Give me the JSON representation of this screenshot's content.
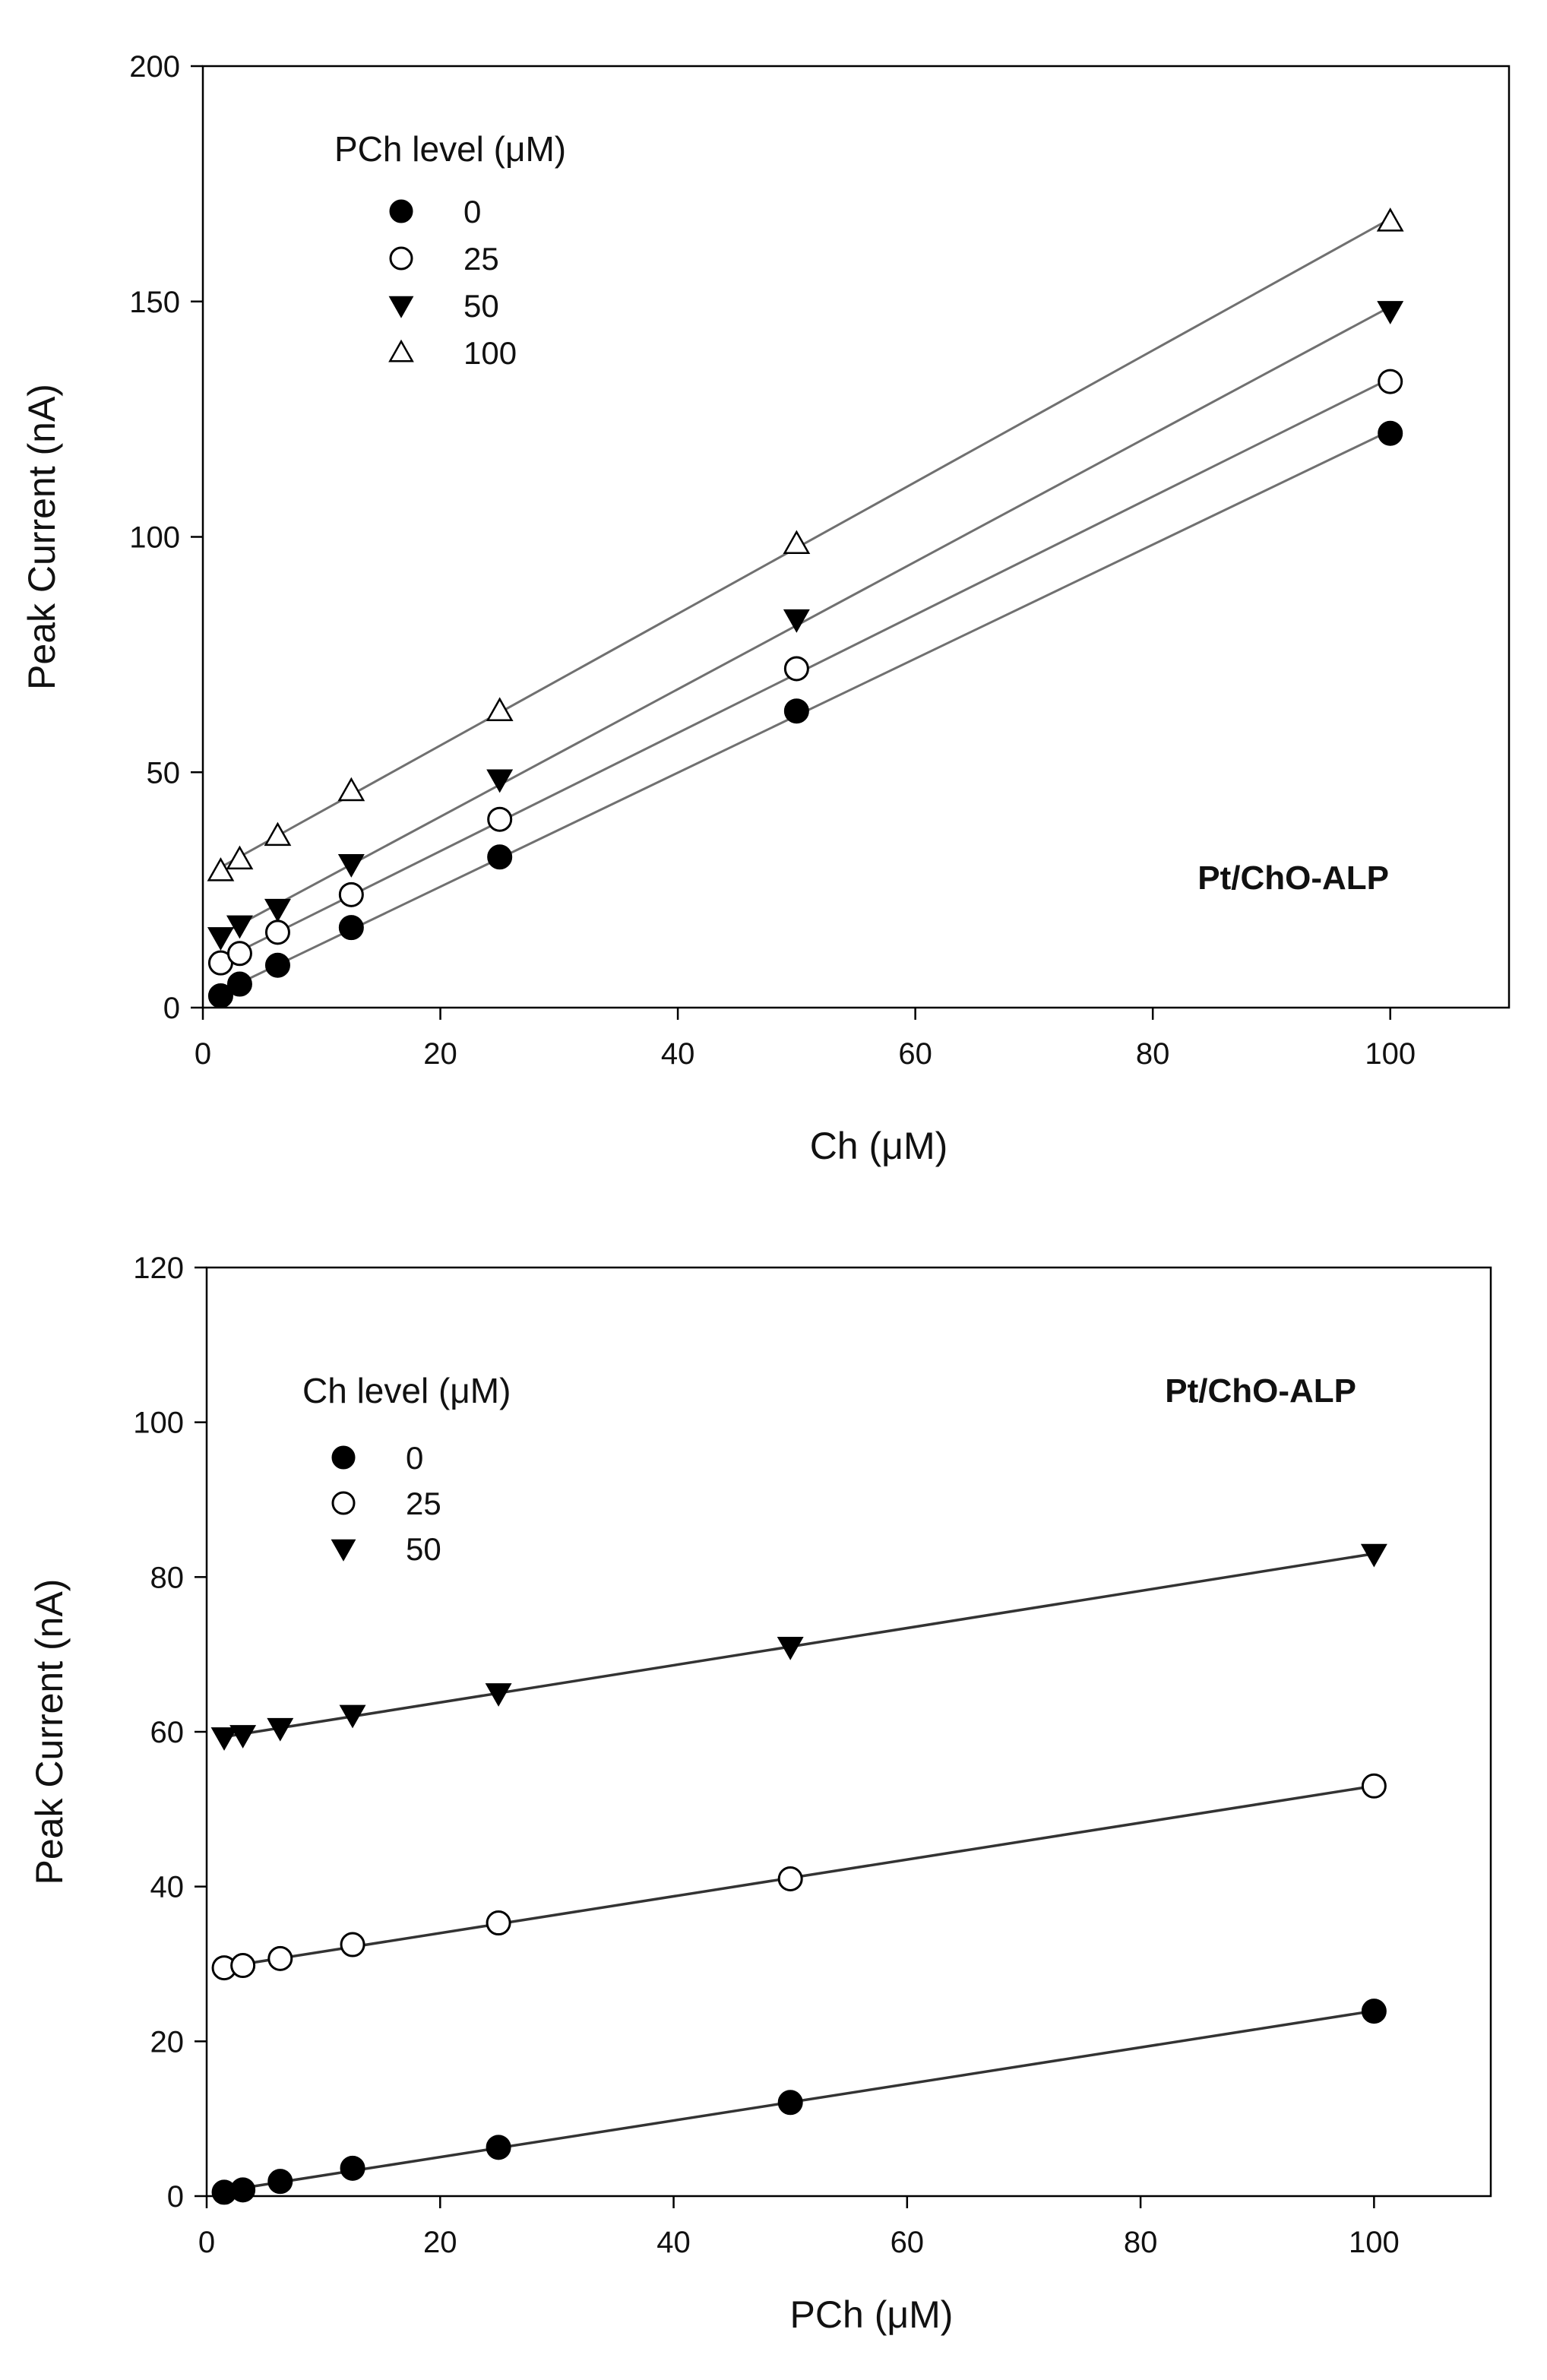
{
  "chart_data": [
    {
      "type": "scatter",
      "title": "",
      "xlabel": "Ch (μM)",
      "ylabel": "Peak Current (nA)",
      "xlim": [
        0,
        110
      ],
      "ylim": [
        0,
        200
      ],
      "xticks": [
        0,
        20,
        40,
        60,
        80,
        100
      ],
      "yticks": [
        0,
        50,
        100,
        150,
        200
      ],
      "grid": false,
      "legend": {
        "title": "PCh level (μM)",
        "position": "top-left"
      },
      "annotation": "Pt/ChO-ALP",
      "x": [
        1.5,
        3.1,
        6.3,
        12.5,
        25,
        50,
        100
      ],
      "series": [
        {
          "name": "0",
          "marker": "filled-circle",
          "fit_line": true,
          "values": [
            2.5,
            5,
            9,
            17,
            32,
            63,
            122
          ]
        },
        {
          "name": "25",
          "marker": "open-circle",
          "fit_line": true,
          "values": [
            9.5,
            11.5,
            16,
            24,
            40,
            72,
            133
          ]
        },
        {
          "name": "50",
          "marker": "filled-triangle-down",
          "fit_line": true,
          "values": [
            15,
            17.5,
            21,
            30.5,
            48.5,
            82.5,
            148
          ]
        },
        {
          "name": "100",
          "marker": "open-triangle-up",
          "fit_line": true,
          "values": [
            29,
            31.5,
            36.5,
            46,
            63,
            98.5,
            167
          ]
        }
      ]
    },
    {
      "type": "scatter",
      "title": "",
      "xlabel": "PCh (μM)",
      "ylabel": "Peak Current (nA)",
      "xlim": [
        0,
        110
      ],
      "ylim": [
        0,
        120
      ],
      "xticks": [
        0,
        20,
        40,
        60,
        80,
        100
      ],
      "yticks": [
        0,
        20,
        40,
        60,
        80,
        100,
        120
      ],
      "grid": false,
      "legend": {
        "title": "Ch level (μM)",
        "position": "top-left"
      },
      "annotation": "Pt/ChO-ALP",
      "x": [
        1.5,
        3.1,
        6.3,
        12.5,
        25,
        50,
        100
      ],
      "series": [
        {
          "name": "0",
          "marker": "filled-circle",
          "fit_line": true,
          "values": [
            0.5,
            0.8,
            1.9,
            3.6,
            6.3,
            12.1,
            23.9
          ]
        },
        {
          "name": "25",
          "marker": "open-circle",
          "fit_line": true,
          "values": [
            29.5,
            29.8,
            30.7,
            32.5,
            35.3,
            41,
            53
          ]
        },
        {
          "name": "50",
          "marker": "filled-triangle-down",
          "fit_line": true,
          "values": [
            59.3,
            59.6,
            60.5,
            62.2,
            65,
            71,
            83
          ]
        }
      ]
    }
  ]
}
